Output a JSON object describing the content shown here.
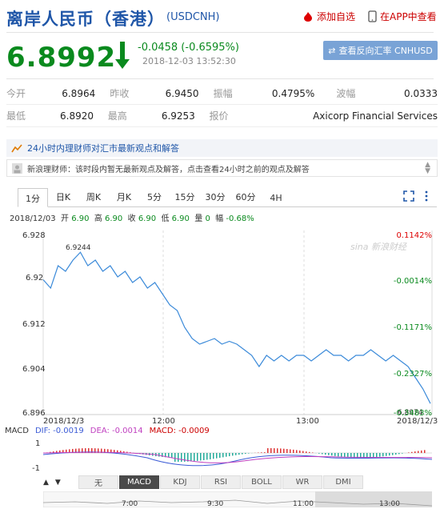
{
  "header": {
    "title": "离岸人民币（香港）",
    "code": "(USDCNH)",
    "add_watch": "添加自选",
    "in_app": "在APP中查看"
  },
  "quote": {
    "price": "6.8992",
    "change": "-0.0458 (-0.6595%)",
    "time": "2018-12-03 13:52:30",
    "reverse_btn": "查看反向汇率 CNHUSD"
  },
  "stats": [
    [
      {
        "label": "今开",
        "value": "6.8964"
      },
      {
        "label": "昨收",
        "value": "6.9450"
      },
      {
        "label": "振幅",
        "value": "0.4795%"
      },
      {
        "label": "波幅",
        "value": "0.0333"
      }
    ],
    [
      {
        "label": "最低",
        "value": "6.8920"
      },
      {
        "label": "最高",
        "value": "6.9253"
      },
      {
        "label": "报价",
        "value": "Axicorp Financial Services"
      }
    ]
  ],
  "news": {
    "headline": "24小时内理财师对汇市最新观点和解答",
    "body": "新浪理财师：该时段内暂无最新观点及解答，点击查看24小时之前的观点及解答"
  },
  "tabs": [
    "1分",
    "日K",
    "周K",
    "月K",
    "5分",
    "15分",
    "30分",
    "60分",
    "4H"
  ],
  "ohlc": {
    "date": "2018/12/03",
    "open_label": "开",
    "open": "6.90",
    "high_label": "高",
    "high": "6.90",
    "close_label": "收",
    "close": "6.90",
    "low_label": "低",
    "low": "6.90",
    "vol_label": "量",
    "vol": "0",
    "amp_label": "幅",
    "amp": "-0.68%"
  },
  "chart_data": {
    "type": "line",
    "yticks": [
      "6.928",
      "6.92",
      "6.912",
      "6.904",
      "6.896"
    ],
    "pct_ticks": [
      "0.1142%",
      "-0.0014%",
      "-0.1171%",
      "-0.2327%",
      "-0.3483%"
    ],
    "xticks": [
      "2018/12/3",
      "12:00",
      "13:00",
      "2018/12/3"
    ],
    "ylim": [
      6.896,
      6.928
    ],
    "annotations": [
      "6.9244",
      "6.8974"
    ],
    "watermark": "sina 新浪财经"
  },
  "macd": {
    "label": "MACD",
    "dif": "DIF: -0.0019",
    "dea": "DEA: -0.0014",
    "macd": "MACD: -0.0009",
    "y1": "1",
    "y2": "-1"
  },
  "indicators": [
    "无",
    "MACD",
    "KDJ",
    "RSI",
    "BOLL",
    "WR",
    "DMI"
  ],
  "nav_times": [
    "7:00",
    "9:30",
    "11:00",
    "13:00"
  ]
}
